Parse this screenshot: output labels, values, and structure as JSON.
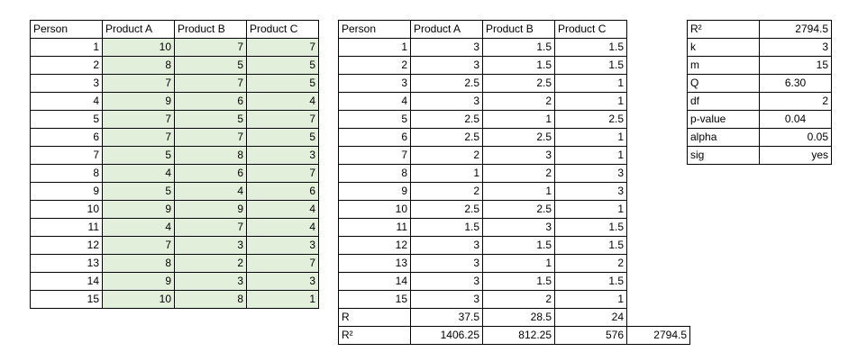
{
  "table1": {
    "header": [
      "Person",
      "Product A",
      "Product B",
      "Product C"
    ],
    "rows": [
      [
        1,
        10,
        7,
        7
      ],
      [
        2,
        8,
        5,
        5
      ],
      [
        3,
        7,
        7,
        5
      ],
      [
        4,
        9,
        6,
        4
      ],
      [
        5,
        7,
        5,
        7
      ],
      [
        6,
        7,
        7,
        5
      ],
      [
        7,
        5,
        8,
        3
      ],
      [
        8,
        4,
        6,
        7
      ],
      [
        9,
        5,
        4,
        6
      ],
      [
        10,
        9,
        9,
        4
      ],
      [
        11,
        4,
        7,
        4
      ],
      [
        12,
        7,
        3,
        3
      ],
      [
        13,
        8,
        2,
        7
      ],
      [
        14,
        9,
        3,
        3
      ],
      [
        15,
        10,
        8,
        1
      ]
    ]
  },
  "table2": {
    "header": [
      "Person",
      "Product A",
      "Product B",
      "Product C"
    ],
    "rows": [
      [
        1,
        3,
        1.5,
        1.5
      ],
      [
        2,
        3,
        1.5,
        1.5
      ],
      [
        3,
        2.5,
        2.5,
        1
      ],
      [
        4,
        3,
        2,
        1
      ],
      [
        5,
        2.5,
        1,
        2.5
      ],
      [
        6,
        2.5,
        2.5,
        1
      ],
      [
        7,
        2,
        3,
        1
      ],
      [
        8,
        1,
        2,
        3
      ],
      [
        9,
        2,
        1,
        3
      ],
      [
        10,
        2.5,
        2.5,
        1
      ],
      [
        11,
        1.5,
        3,
        1.5
      ],
      [
        12,
        3,
        1.5,
        1.5
      ],
      [
        13,
        3,
        1,
        2
      ],
      [
        14,
        3,
        1.5,
        1.5
      ],
      [
        15,
        3,
        2,
        1
      ]
    ],
    "totals": [
      [
        "R",
        37.5,
        28.5,
        24
      ],
      [
        "R²",
        1406.25,
        812.25,
        576,
        2794.5
      ]
    ]
  },
  "table3": {
    "rows": [
      [
        "R²",
        2794.5
      ],
      [
        "k",
        3
      ],
      [
        "m",
        15
      ],
      [
        "Q",
        "6.30"
      ],
      [
        "df",
        2
      ],
      [
        "p-value",
        "0.04"
      ],
      [
        "alpha",
        0.05
      ],
      [
        "sig",
        "yes"
      ]
    ]
  }
}
